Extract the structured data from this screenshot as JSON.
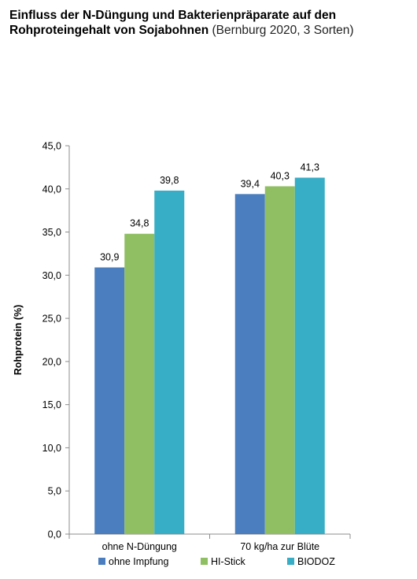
{
  "title_bold": "Einfluss der N-Düngung und Bakterienpräparate auf den Rohproteingehalt von Sojabohnen",
  "title_note": "(Bernburg 2020, 3 Sorten)",
  "chart_data": {
    "type": "bar",
    "title": "Einfluss der N-Düngung und Bakterienpräparate auf den Rohproteingehalt von Sojabohnen (Bernburg 2020, 3 Sorten)",
    "ylabel": "Rohprotein (%)",
    "xlabel": "",
    "ylim": [
      0,
      45
    ],
    "yticks": [
      "0,0",
      "5,0",
      "10,0",
      "15,0",
      "20,0",
      "25,0",
      "30,0",
      "35,0",
      "40,0",
      "45,0"
    ],
    "categories": [
      "ohne N-Düngung",
      "70 kg/ha zur Blüte"
    ],
    "series": [
      {
        "name": "ohne Impfung",
        "values": [
          30.9,
          39.4
        ],
        "labels": [
          "30,9",
          "39,4"
        ],
        "color": "#4a7ebf"
      },
      {
        "name": "HI-Stick",
        "values": [
          34.8,
          40.3
        ],
        "labels": [
          "34,8",
          "40,3"
        ],
        "color": "#8fbf62"
      },
      {
        "name": "BIODOZ",
        "values": [
          39.8,
          41.3
        ],
        "labels": [
          "39,8",
          "41,3"
        ],
        "color": "#37adc6"
      }
    ],
    "grid": false,
    "legend": "bottom"
  }
}
